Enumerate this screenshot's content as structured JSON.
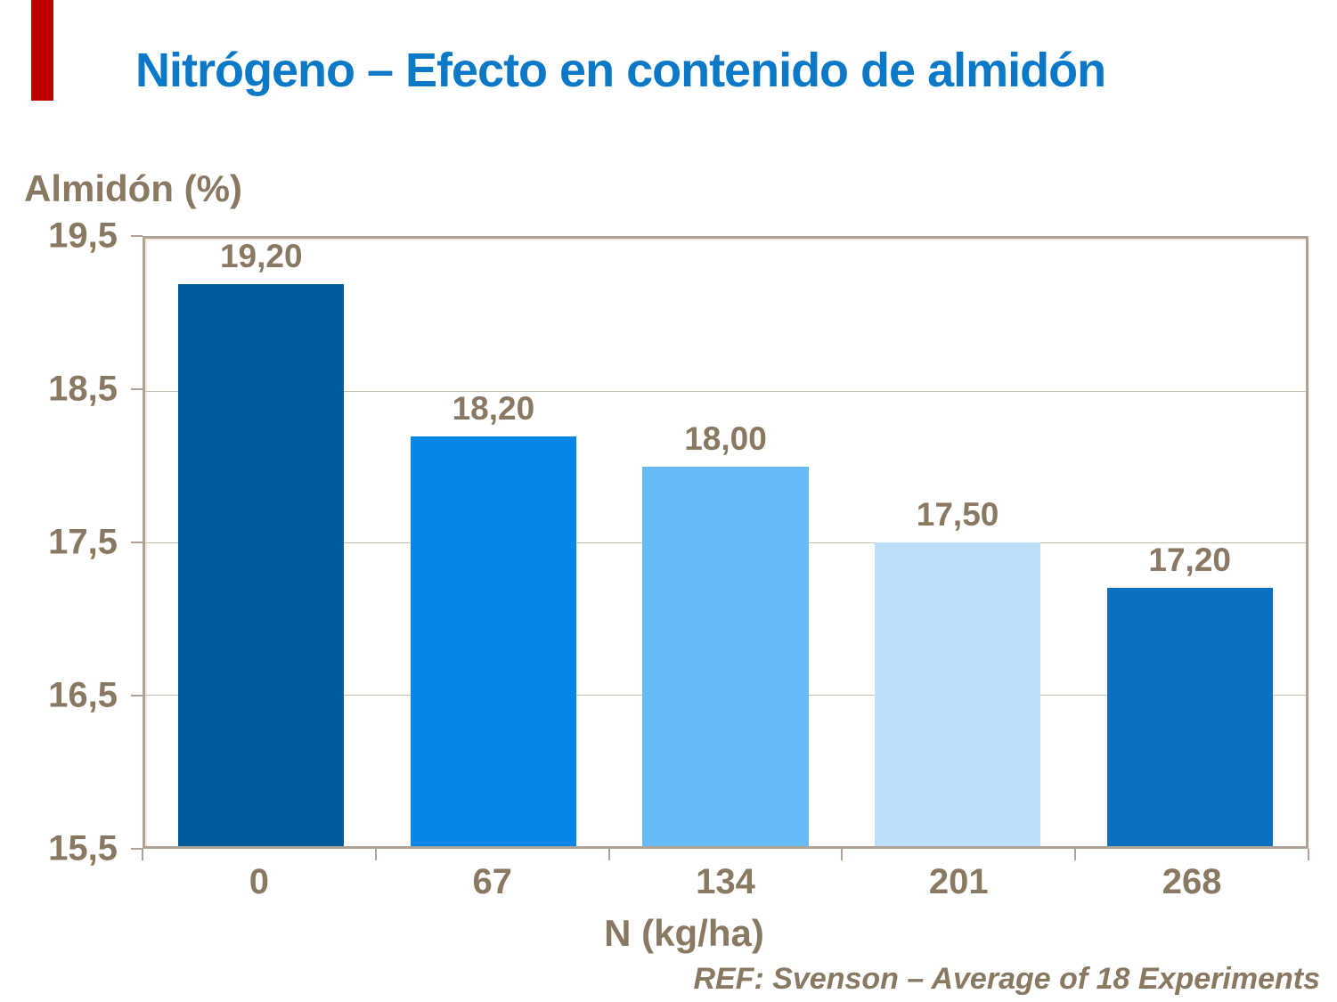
{
  "slide": {
    "accent_color": "#C00000",
    "title_color": "#0C79C8",
    "text_color": "#8A7962"
  },
  "chart_data": {
    "type": "bar",
    "title": "Nitrógeno – Efecto en contenido de almidón",
    "ylabel": "Almidón (%)",
    "xlabel": "N (kg/ha)",
    "categories": [
      "0",
      "67",
      "134",
      "201",
      "268"
    ],
    "values": [
      19.2,
      18.2,
      18.0,
      17.5,
      17.2
    ],
    "value_labels": [
      "19,20",
      "18,20",
      "18,00",
      "17,50",
      "17,20"
    ],
    "ylim": [
      15.5,
      19.5
    ],
    "ytick_labels": [
      "19,5",
      "18,5",
      "17,5",
      "16,5",
      "15,5"
    ],
    "grid": true,
    "legend": "none",
    "bar_colors": [
      "#005B9E",
      "#0585E8",
      "#66BBF7",
      "#BEDFFA",
      "#0C70C2"
    ],
    "plot_border_color": "#AEA295",
    "gridline_color": "#C8BEB0",
    "annotation": "REF: Svenson – Average of 18 Experiments"
  }
}
